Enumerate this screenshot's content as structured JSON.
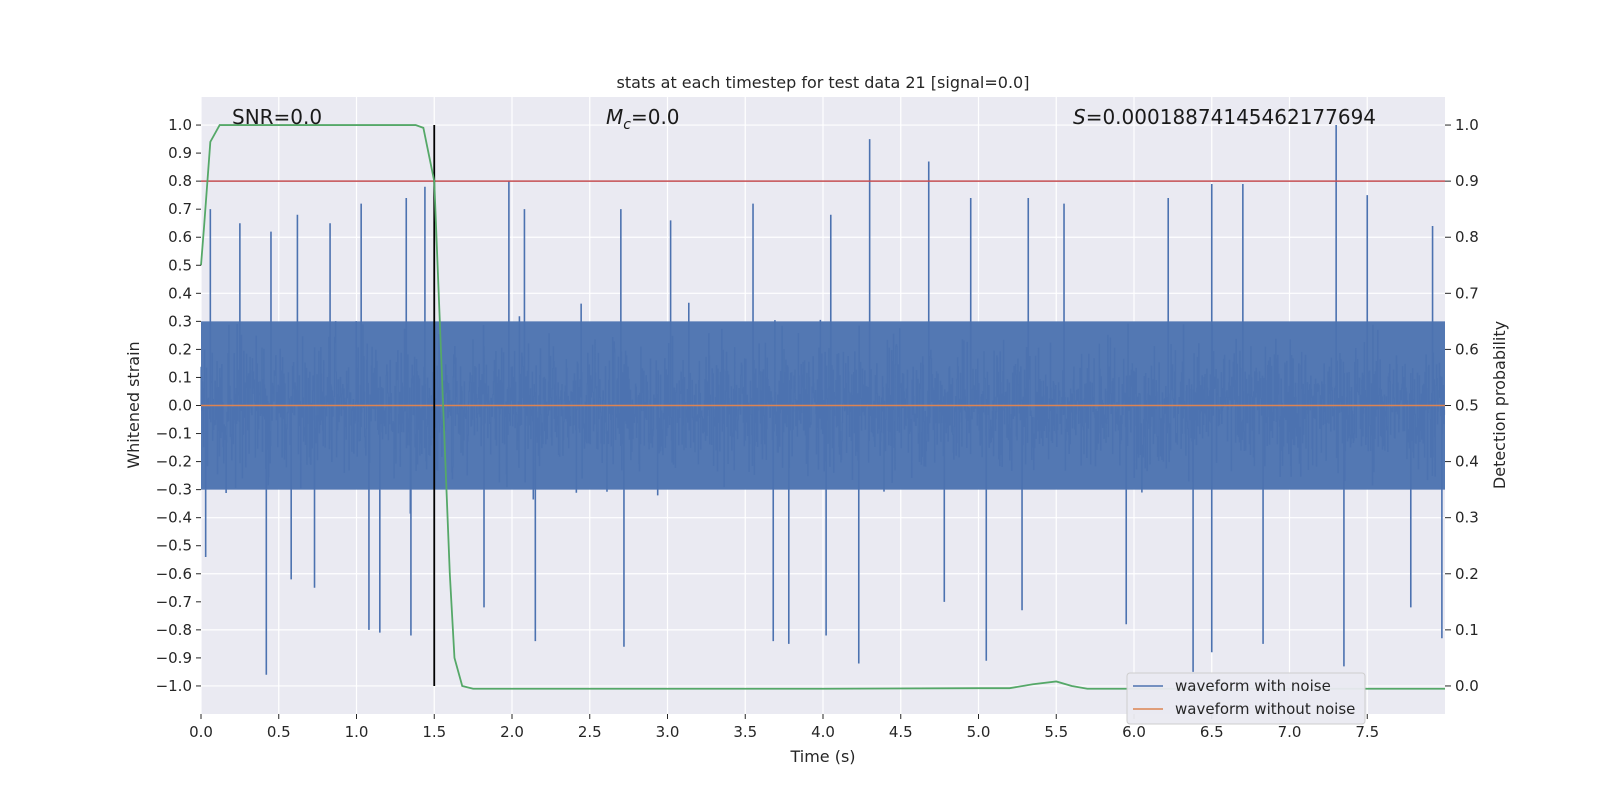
{
  "chart_data": {
    "type": "line",
    "title": "stats at each timestep for test data 21 [signal=0.0]",
    "xlabel": "Time (s)",
    "ylabel": "Whitened strain",
    "y2label": "Detection probability",
    "xlim": [
      0.0,
      8.0
    ],
    "ylim": [
      -1.1,
      1.1
    ],
    "y2lim": [
      -0.05,
      1.05
    ],
    "xticks": [
      0.0,
      0.5,
      1.0,
      1.5,
      2.0,
      2.5,
      3.0,
      3.5,
      4.0,
      4.5,
      5.0,
      5.5,
      6.0,
      6.5,
      7.0,
      7.5
    ],
    "yticks": [
      -1.0,
      -0.9,
      -0.8,
      -0.7,
      -0.6,
      -0.5,
      -0.4,
      -0.3,
      -0.2,
      -0.1,
      0.0,
      0.1,
      0.2,
      0.3,
      0.4,
      0.5,
      0.6,
      0.7,
      0.8,
      0.9,
      1.0
    ],
    "y2ticks": [
      0.0,
      0.1,
      0.2,
      0.3,
      0.4,
      0.5,
      0.6,
      0.7,
      0.8,
      0.9,
      1.0
    ],
    "xtick_labels": [
      "0.0",
      "0.5",
      "1.0",
      "1.5",
      "2.0",
      "2.5",
      "3.0",
      "3.5",
      "4.0",
      "4.5",
      "5.0",
      "5.5",
      "6.0",
      "6.5",
      "7.0",
      "7.5"
    ],
    "ytick_labels": [
      "−1.0",
      "−0.9",
      "−0.8",
      "−0.7",
      "−0.6",
      "−0.5",
      "−0.4",
      "−0.3",
      "−0.2",
      "−0.1",
      "0.0",
      "0.1",
      "0.2",
      "0.3",
      "0.4",
      "0.5",
      "0.6",
      "0.7",
      "0.8",
      "0.9",
      "1.0"
    ],
    "y2tick_labels": [
      "0.0",
      "0.1",
      "0.2",
      "0.3",
      "0.4",
      "0.5",
      "0.6",
      "0.7",
      "0.8",
      "0.9",
      "1.0"
    ],
    "grid": true,
    "legend_position": "lower-right",
    "annotations": {
      "snr": "SNR=0.0",
      "mc_symbol": "M",
      "mc_sub": "c",
      "mc_value": "=0.0",
      "s_symbol": "S",
      "s_value": "=0.00018874145462177694"
    },
    "series": [
      {
        "name": "waveform with noise",
        "axis": "left",
        "color": "#4c72b0",
        "description_stats": {
          "x_range": [
            0.0,
            8.0
          ],
          "typical_amplitude": 0.3,
          "max": 1.0,
          "min": -0.96
        },
        "peaks_up": [
          [
            0.06,
            0.7
          ],
          [
            0.25,
            0.65
          ],
          [
            0.45,
            0.62
          ],
          [
            0.62,
            0.68
          ],
          [
            0.83,
            0.65
          ],
          [
            1.03,
            0.72
          ],
          [
            1.32,
            0.74
          ],
          [
            1.44,
            0.78
          ],
          [
            1.98,
            0.8
          ],
          [
            2.08,
            0.7
          ],
          [
            2.7,
            0.7
          ],
          [
            3.02,
            0.66
          ],
          [
            3.55,
            0.72
          ],
          [
            4.05,
            0.68
          ],
          [
            4.3,
            0.95
          ],
          [
            4.68,
            0.87
          ],
          [
            4.95,
            0.74
          ],
          [
            5.32,
            0.74
          ],
          [
            5.55,
            0.72
          ],
          [
            6.22,
            0.74
          ],
          [
            6.5,
            0.79
          ],
          [
            6.7,
            0.79
          ],
          [
            7.3,
            1.0
          ],
          [
            7.5,
            0.75
          ],
          [
            7.92,
            0.64
          ]
        ],
        "peaks_down": [
          [
            0.03,
            -0.54
          ],
          [
            0.42,
            -0.96
          ],
          [
            0.58,
            -0.62
          ],
          [
            0.73,
            -0.65
          ],
          [
            1.08,
            -0.8
          ],
          [
            1.15,
            -0.81
          ],
          [
            1.35,
            -0.82
          ],
          [
            1.82,
            -0.72
          ],
          [
            2.15,
            -0.84
          ],
          [
            2.72,
            -0.86
          ],
          [
            3.68,
            -0.84
          ],
          [
            3.78,
            -0.85
          ],
          [
            4.02,
            -0.82
          ],
          [
            4.23,
            -0.92
          ],
          [
            4.78,
            -0.7
          ],
          [
            5.05,
            -0.91
          ],
          [
            5.28,
            -0.73
          ],
          [
            5.95,
            -0.78
          ],
          [
            6.38,
            -0.95
          ],
          [
            6.5,
            -0.88
          ],
          [
            6.83,
            -0.85
          ],
          [
            7.35,
            -0.93
          ],
          [
            7.78,
            -0.72
          ],
          [
            7.98,
            -0.83
          ]
        ]
      },
      {
        "name": "waveform without noise",
        "axis": "left",
        "color": "#dd8452",
        "x": [
          0.0,
          8.0
        ],
        "y": [
          0.0,
          0.0
        ]
      },
      {
        "name": "",
        "axis": "right",
        "color": "#55a868",
        "x": [
          0.0,
          0.02,
          0.06,
          0.12,
          0.2,
          0.4,
          0.8,
          1.2,
          1.38,
          1.43,
          1.5,
          1.55,
          1.6,
          1.63,
          1.68,
          1.75,
          2.0,
          3.0,
          4.0,
          5.0,
          5.2,
          5.35,
          5.5,
          5.6,
          5.7,
          6.0,
          7.0,
          8.0
        ],
        "y": [
          0.75,
          0.82,
          0.97,
          1.0,
          1.0,
          1.0,
          1.0,
          1.0,
          1.0,
          0.995,
          0.9,
          0.55,
          0.2,
          0.05,
          0.0,
          -0.005,
          -0.005,
          -0.005,
          -0.005,
          -0.004,
          -0.004,
          0.003,
          0.008,
          0.0,
          -0.005,
          -0.005,
          -0.005,
          -0.005
        ]
      }
    ],
    "threshold_line": {
      "axis": "right",
      "y": 0.9,
      "color": "#c44e52"
    },
    "marker_line": {
      "x": 1.5,
      "y_range": [
        -1.0,
        1.0
      ],
      "color": "#000000"
    },
    "colors": {
      "plot_background": "#eaeaf2",
      "grid": "#ffffff",
      "noise": "#4c72b0",
      "clean": "#dd8452",
      "probability": "#55a868",
      "threshold": "#c44e52"
    }
  }
}
